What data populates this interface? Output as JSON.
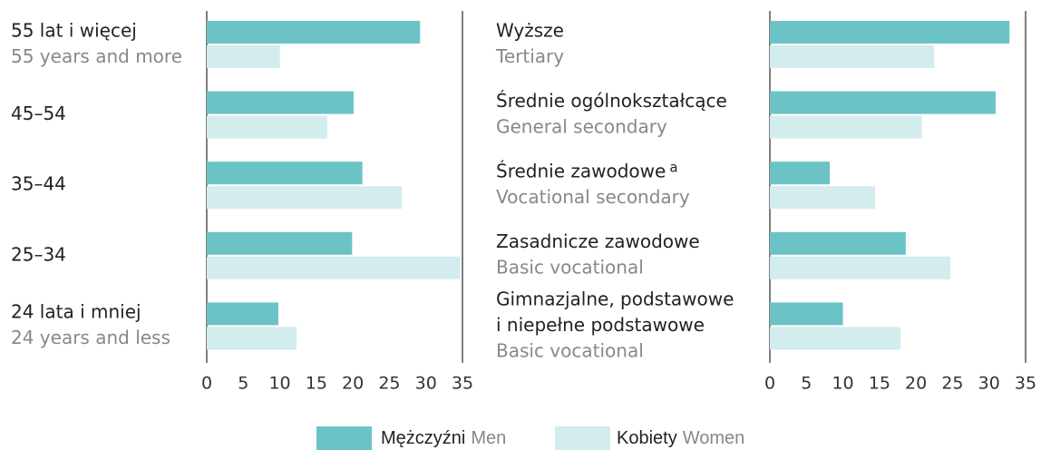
{
  "chart_data": [
    {
      "type": "bar",
      "orientation": "horizontal",
      "categories": [
        [
          "55 lat i więcej",
          "55 years and more"
        ],
        [
          "45–54"
        ],
        [
          "35–44"
        ],
        [
          "25–34"
        ],
        [
          "24 lata i mniej",
          "24 years and less"
        ]
      ],
      "series": [
        {
          "name": "Mężczyźni",
          "name_en": "Men",
          "color": "#6cc3c6",
          "values": [
            29.2,
            20.1,
            21.3,
            19.9,
            9.8
          ]
        },
        {
          "name": "Kobiety",
          "name_en": "Women",
          "color": "#d3ecee",
          "values": [
            10.0,
            16.5,
            26.7,
            34.7,
            12.3
          ]
        }
      ],
      "xlim": [
        0,
        35
      ],
      "xticks": [
        0,
        5,
        10,
        15,
        20,
        25,
        30,
        35
      ]
    },
    {
      "type": "bar",
      "orientation": "horizontal",
      "categories": [
        [
          "Wyższe",
          "Tertiary"
        ],
        [
          "Średnie ogólnokształcące",
          "General secondary"
        ],
        [
          "Średnie zawodowe",
          "Vocational secondary"
        ],
        [
          "Zasadnicze zawodowe",
          "Basic vocational"
        ],
        [
          "Gimnazjalne, podstawowe",
          "i niepełne podstawowe",
          "Basic vocational"
        ]
      ],
      "category_notes": [
        null,
        null,
        "a",
        null,
        null
      ],
      "series": [
        {
          "name": "Mężczyźni",
          "name_en": "Men",
          "color": "#6cc3c6",
          "values": [
            32.8,
            30.9,
            8.2,
            18.6,
            10.0
          ]
        },
        {
          "name": "Kobiety",
          "name_en": "Women",
          "color": "#d3ecee",
          "values": [
            22.5,
            20.8,
            14.4,
            24.7,
            17.9
          ]
        }
      ],
      "xlim": [
        0,
        35
      ],
      "xticks": [
        0,
        5,
        10,
        15,
        20,
        25,
        30,
        35
      ]
    }
  ]
}
